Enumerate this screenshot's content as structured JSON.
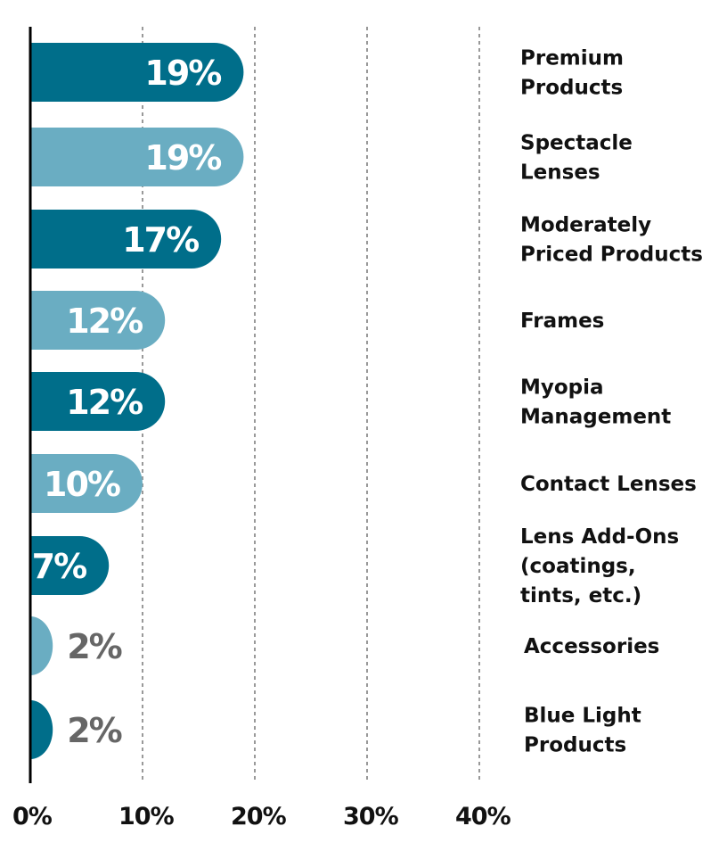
{
  "chart_data": {
    "type": "bar",
    "orientation": "horizontal",
    "title": "",
    "xlabel": "",
    "ylabel": "",
    "xlim": [
      0,
      40
    ],
    "x_ticks": [
      {
        "value": 0,
        "label": "0%"
      },
      {
        "value": 10,
        "label": "10%"
      },
      {
        "value": 20,
        "label": "20%"
      },
      {
        "value": 30,
        "label": "30%"
      },
      {
        "value": 40,
        "label": "40%"
      }
    ],
    "grid": "vertical dashed",
    "legend": "none",
    "colors": {
      "dark": "#006e8a",
      "light": "#6aadc2",
      "value_text_inside": "#ffffff",
      "value_text_outside": "#666666",
      "axis": "#000000",
      "grid": "#999999"
    },
    "bars": [
      {
        "category_lines": [
          "Premium",
          "Products"
        ],
        "value": 19,
        "label": "19%",
        "shade": "dark"
      },
      {
        "category_lines": [
          "Spectacle",
          "Lenses"
        ],
        "value": 19,
        "label": "19%",
        "shade": "light"
      },
      {
        "category_lines": [
          "Moderately",
          "Priced Products"
        ],
        "value": 17,
        "label": "17%",
        "shade": "dark"
      },
      {
        "category_lines": [
          "Frames"
        ],
        "value": 12,
        "label": "12%",
        "shade": "light"
      },
      {
        "category_lines": [
          "Myopia",
          "Management"
        ],
        "value": 12,
        "label": "12%",
        "shade": "dark"
      },
      {
        "category_lines": [
          "Contact Lenses"
        ],
        "value": 10,
        "label": "10%",
        "shade": "light"
      },
      {
        "category_lines": [
          "Lens Add-Ons",
          "(coatings,",
          "tints, etc.)"
        ],
        "value": 7,
        "label": "7%",
        "shade": "dark"
      },
      {
        "category_lines": [
          "Accessories"
        ],
        "value": 2,
        "label": "2%",
        "shade": "light"
      },
      {
        "category_lines": [
          "Blue Light",
          "Products"
        ],
        "value": 2,
        "label": "2%",
        "shade": "dark"
      }
    ]
  }
}
